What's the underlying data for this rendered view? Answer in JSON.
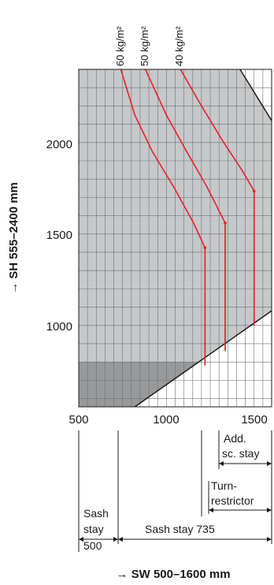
{
  "chart_data": {
    "type": "line",
    "xlabel": "SW 500–1600 mm",
    "ylabel": "SH 555–2400 mm",
    "xlim": [
      500,
      1600
    ],
    "ylim": [
      555,
      2400
    ],
    "x_ticks": [
      500,
      1000,
      1500
    ],
    "y_ticks": [
      1000,
      1500,
      2000
    ],
    "grid": true,
    "series": [
      {
        "name": "60 kg/m²",
        "color": "#e8202a",
        "points": [
          [
            740,
            2400
          ],
          [
            820,
            2150
          ],
          [
            920,
            1950
          ],
          [
            1040,
            1760
          ],
          [
            1155,
            1560
          ],
          [
            1220,
            1425
          ],
          [
            1220,
            780
          ]
        ]
      },
      {
        "name": "50 kg/m²",
        "color": "#e8202a",
        "points": [
          [
            880,
            2400
          ],
          [
            1000,
            2150
          ],
          [
            1110,
            1960
          ],
          [
            1230,
            1760
          ],
          [
            1335,
            1560
          ],
          [
            1335,
            860
          ]
        ]
      },
      {
        "name": "40 kg/m²",
        "color": "#e8202a",
        "points": [
          [
            1080,
            2400
          ],
          [
            1200,
            2200
          ],
          [
            1320,
            2010
          ],
          [
            1430,
            1850
          ],
          [
            1500,
            1735
          ],
          [
            1500,
            1000
          ]
        ]
      }
    ],
    "regions": {
      "light_grey_area": {
        "color": "#c6c8ca"
      },
      "dark_grey_area": {
        "color": "#97999b"
      }
    },
    "annotations": {
      "add_sc_stay": "Add. sc. stay",
      "add_sc_stay_line1": "Add.",
      "add_sc_stay_line2": "sc. stay",
      "turn_restrictor_line1": "Turn-",
      "turn_restrictor_line2": "restrictor",
      "sash_stay_line1": "Sash",
      "sash_stay_line2": "stay",
      "sash_stay_value": "500",
      "sash_stay_735": "Sash stay 735"
    },
    "arrow_glyph": "→"
  }
}
